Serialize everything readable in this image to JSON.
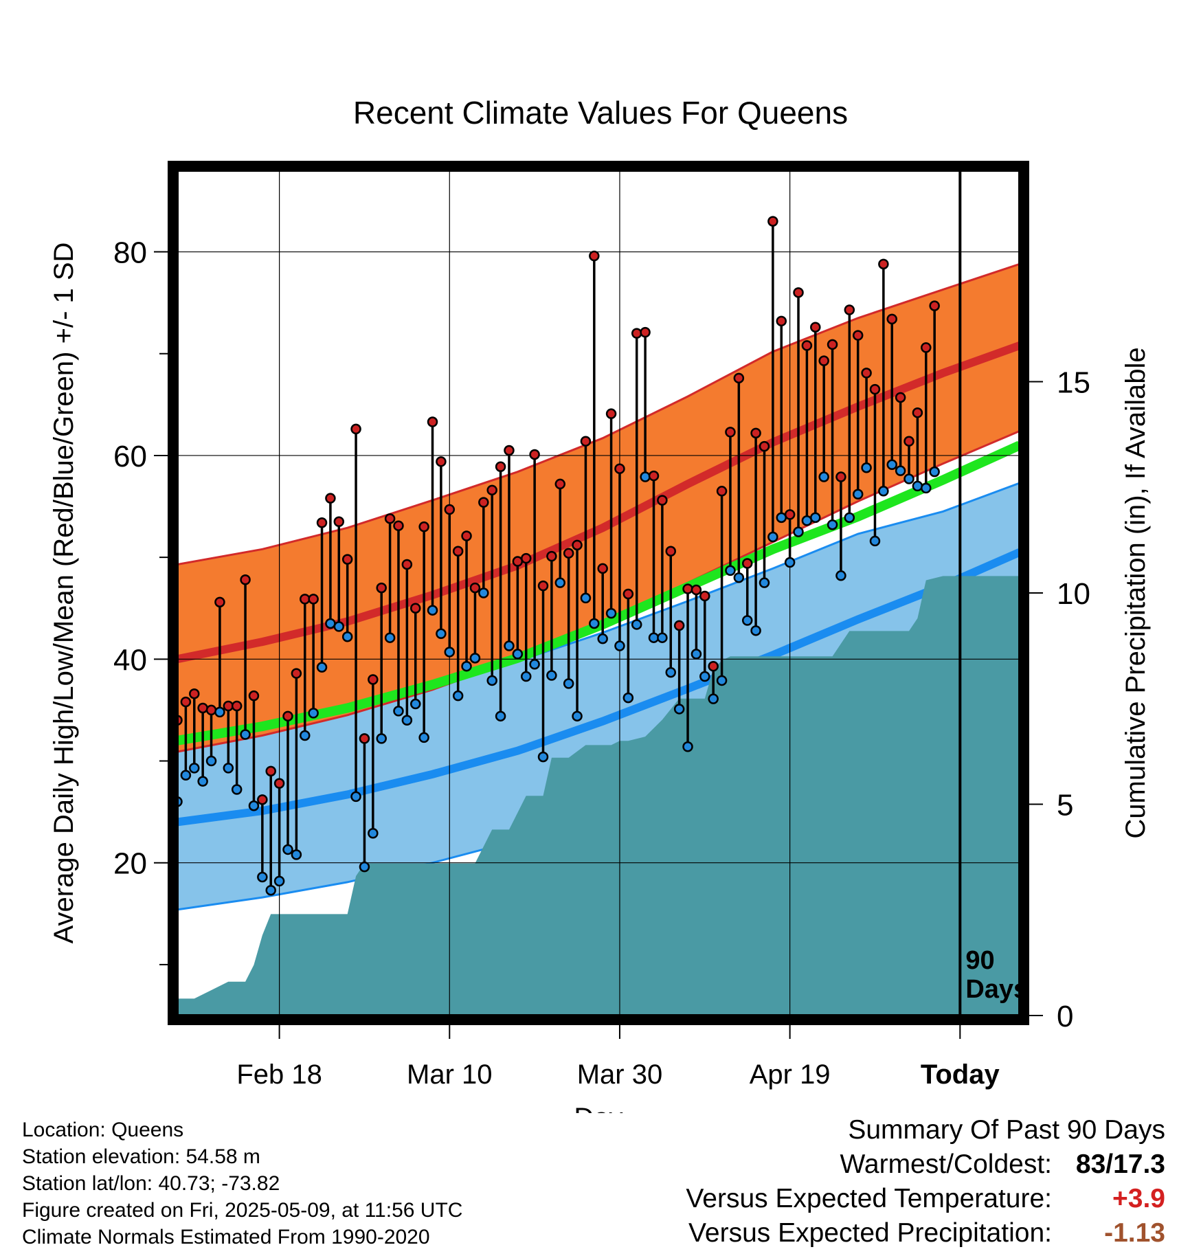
{
  "title": "Recent Climate Values For Queens",
  "colors": {
    "high_sd_band": "#f47b2f",
    "high_mean": "#d22a2a",
    "low_sd_band": "#86c3ea",
    "low_mean": "#1a8cf0",
    "daily_mean": "#1ee61e",
    "precip": "#4a9aa4",
    "high_point": "#cc2222",
    "low_point": "#2288dd"
  },
  "chart_data": {
    "type": "line",
    "xlabel": "Day",
    "ylabel": "Average Daily High/Low/Mean (Red/Blue/Green) +/- 1 SD",
    "y2label": "Cumulative Precipitation (in), If Available",
    "x_range_days": [
      -90,
      9
    ],
    "x_ticks": [
      {
        "day": -78,
        "label": "Feb 18"
      },
      {
        "day": -58,
        "label": "Mar 10"
      },
      {
        "day": -38,
        "label": "Mar 30"
      },
      {
        "day": -18,
        "label": "Apr 19"
      },
      {
        "day": 2,
        "label": "Today"
      }
    ],
    "ylim": [
      5,
      88
    ],
    "y_ticks": [
      20,
      40,
      60,
      80
    ],
    "y2lim": [
      0,
      20
    ],
    "y2_ticks": [
      0,
      5,
      10,
      15
    ],
    "grid": true,
    "today_marker_label": [
      "90",
      "Days"
    ],
    "normals": {
      "x": [
        -90,
        -80,
        -70,
        -60,
        -50,
        -40,
        -30,
        -20,
        -10,
        0,
        9
      ],
      "high_mean": [
        40.0,
        41.7,
        43.7,
        46.3,
        49.2,
        52.9,
        57.2,
        61.3,
        64.8,
        68.1,
        70.8
      ],
      "high_upper": [
        49.3,
        50.8,
        52.9,
        55.6,
        58.4,
        61.7,
        65.8,
        70.2,
        73.5,
        76.3,
        78.8
      ],
      "high_lower": [
        30.9,
        32.5,
        34.5,
        37.0,
        40.0,
        43.5,
        47.5,
        51.5,
        55.5,
        59.2,
        62.4
      ],
      "daily_mean": [
        32.0,
        33.4,
        35.2,
        37.5,
        40.1,
        43.4,
        47.1,
        50.8,
        54.0,
        57.6,
        61.0
      ],
      "low_mean": [
        24.0,
        25.1,
        26.7,
        28.7,
        31.0,
        33.9,
        37.1,
        40.4,
        43.9,
        47.2,
        50.5
      ],
      "low_upper": [
        32.5,
        33.6,
        35.3,
        37.4,
        39.8,
        42.6,
        45.7,
        48.9,
        52.3,
        54.5,
        57.3
      ],
      "low_lower": [
        15.4,
        16.6,
        18.1,
        20.0,
        22.2,
        25.0,
        28.5,
        32.1,
        35.7,
        39.0,
        44.8
      ]
    },
    "series": [
      {
        "name": "Daily High",
        "values": [
          34,
          35.8,
          36.6,
          35.2,
          35,
          45.6,
          35.4,
          35.4,
          47.8,
          36.4,
          26.2,
          29,
          27.8,
          34.4,
          38.6,
          45.9,
          45.9,
          53.4,
          55.8,
          53.5,
          49.8,
          62.6,
          32.2,
          38,
          47,
          53.8,
          53.1,
          49.3,
          45,
          53,
          63.3,
          59.4,
          54.7,
          50.6,
          52.1,
          47,
          55.4,
          56.6,
          58.9,
          60.5,
          49.6,
          49.9,
          60.1,
          47.2,
          50.1,
          57.2,
          50.4,
          51.2,
          61.4,
          79.6,
          48.9,
          64.1,
          58.7,
          46.4,
          72,
          72.1,
          58,
          55.6,
          50.6,
          43.3,
          46.9,
          46.8,
          46.2,
          39.3,
          56.5,
          62.3,
          67.6,
          49.4,
          62.2,
          60.9,
          83,
          73.2,
          54.2,
          76,
          70.8,
          72.6,
          69.3,
          70.9,
          57.9,
          74.3,
          71.8,
          68.1,
          66.5,
          78.8,
          73.4,
          65.7,
          61.4,
          64.2,
          70.6,
          74.7
        ]
      },
      {
        "name": "Daily Low",
        "values": [
          26,
          28.6,
          29.3,
          28,
          30,
          34.8,
          29.3,
          27.2,
          32.6,
          25.6,
          18.6,
          17.3,
          18.2,
          21.3,
          20.8,
          32.5,
          34.7,
          39.2,
          43.5,
          43.2,
          42.2,
          26.5,
          19.6,
          22.9,
          32.2,
          42.1,
          34.9,
          34,
          35.6,
          32.3,
          44.8,
          42.5,
          40.7,
          36.4,
          39.3,
          40.1,
          46.5,
          37.9,
          34.4,
          41.3,
          40.5,
          38.3,
          39.5,
          30.4,
          38.4,
          47.5,
          37.6,
          34.4,
          46,
          43.5,
          42,
          44.5,
          41.3,
          36.2,
          43.4,
          57.9,
          42.1,
          42.1,
          38.7,
          35.1,
          31.4,
          40.5,
          38.3,
          36.1,
          37.9,
          48.7,
          48,
          43.8,
          42.8,
          47.5,
          52,
          53.9,
          49.5,
          52.5,
          53.6,
          53.9,
          57.9,
          53.2,
          48.2,
          53.9,
          56.2,
          58.8,
          51.6,
          56.5,
          59.1,
          58.5,
          57.7,
          57,
          56.8,
          58.4
        ]
      }
    ],
    "precip_cumulative": {
      "x": [
        -90,
        -88,
        -86,
        -84,
        -82,
        -81,
        -80,
        -79,
        -78,
        -70,
        -69,
        -68,
        -60,
        -57,
        -55,
        -53,
        -51,
        -49,
        -47,
        -46,
        -44,
        -42,
        -39,
        -38,
        -37,
        -35,
        -33,
        -31,
        -28,
        -27,
        -26,
        -25,
        -24,
        -21,
        -19,
        -17,
        -16,
        -14,
        -13,
        -11,
        -10,
        -9,
        -7,
        -5,
        -4,
        -3,
        -2,
        0,
        2,
        9
      ],
      "y": [
        0.4,
        0.4,
        0.6,
        0.8,
        0.8,
        1.2,
        1.9,
        2.4,
        2.4,
        2.4,
        3.3,
        3.6,
        3.6,
        3.6,
        3.6,
        4.4,
        4.4,
        5.2,
        5.2,
        6.1,
        6.1,
        6.4,
        6.4,
        6.5,
        6.5,
        6.6,
        7.0,
        7.5,
        7.5,
        8.2,
        8.4,
        8.5,
        8.5,
        8.5,
        8.5,
        8.5,
        8.5,
        8.5,
        8.5,
        9.1,
        9.1,
        9.1,
        9.1,
        9.1,
        9.1,
        9.4,
        10.3,
        10.4,
        10.4,
        10.4
      ]
    }
  },
  "footer": {
    "location": "Location: Queens",
    "elevation": "Station elevation: 54.58 m",
    "latlon": "Station lat/lon: 40.73; -73.82",
    "created": "Figure created on Fri, 2025-05-09, at 11:56 UTC",
    "normals": "Climate Normals Estimated From 1990-2020"
  },
  "summary": {
    "heading": "Summary Of Past 90 Days",
    "warmest_coldest_label": "Warmest/Coldest:",
    "warmest_coldest_value": "83/17.3",
    "temp_label": "Versus Expected Temperature:",
    "temp_value": "+3.9",
    "temp_color": "#d42020",
    "precip_label": "Versus Expected Precipitation:",
    "precip_value": "-1.13",
    "precip_color": "#a0522d"
  }
}
